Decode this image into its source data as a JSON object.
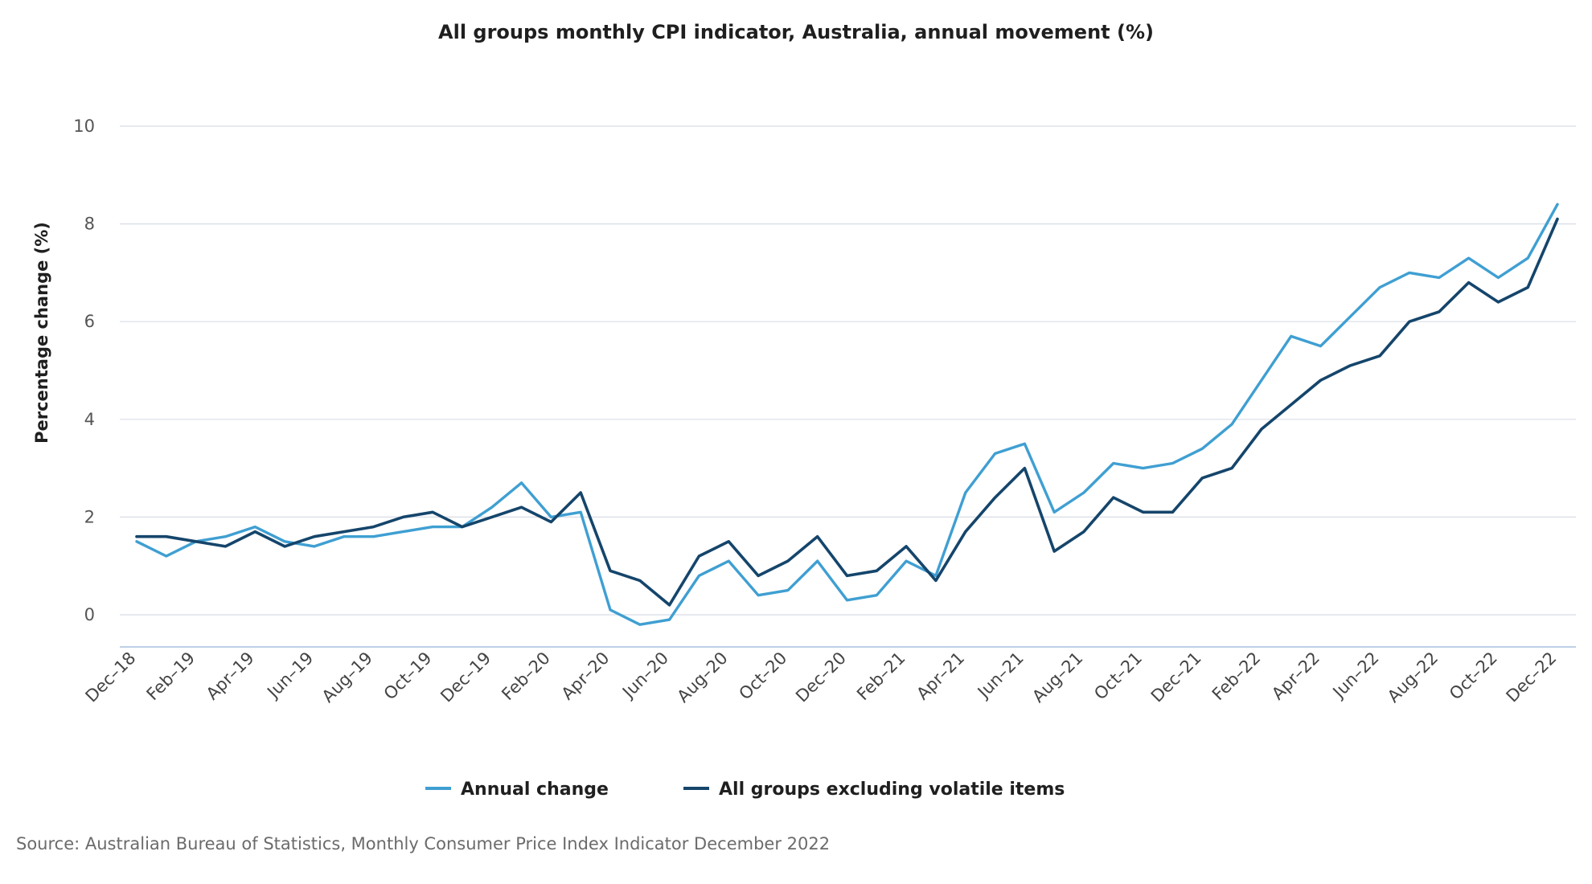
{
  "chart_data": {
    "type": "line",
    "title": "All groups monthly CPI indicator, Australia, annual movement (%)",
    "xlabel": "",
    "ylabel": "Percentage change (%)",
    "ylim": [
      -0.6,
      10
    ],
    "yticks": [
      0,
      2,
      4,
      6,
      8,
      10
    ],
    "grid": true,
    "legend_position": "bottom-center",
    "categories": [
      "Dec-18",
      "Jan-19",
      "Feb-19",
      "Mar-19",
      "Apr-19",
      "May-19",
      "Jun-19",
      "Jul-19",
      "Aug-19",
      "Sep-19",
      "Oct-19",
      "Nov-19",
      "Dec-19",
      "Jan-20",
      "Feb-20",
      "Mar-20",
      "Apr-20",
      "May-20",
      "Jun-20",
      "Jul-20",
      "Aug-20",
      "Sep-20",
      "Oct-20",
      "Nov-20",
      "Dec-20",
      "Jan-21",
      "Feb-21",
      "Mar-21",
      "Apr-21",
      "May-21",
      "Jun-21",
      "Jul-21",
      "Aug-21",
      "Sep-21",
      "Oct-21",
      "Nov-21",
      "Dec-21",
      "Jan-22",
      "Feb-22",
      "Mar-22",
      "Apr-22",
      "May-22",
      "Jun-22",
      "Jul-22",
      "Aug-22",
      "Sep-22",
      "Oct-22",
      "Nov-22",
      "Dec-22"
    ],
    "tick_labels": [
      "Dec–18",
      "Feb–19",
      "Apr–19",
      "Jun–19",
      "Aug–19",
      "Oct–19",
      "Dec–19",
      "Feb–20",
      "Apr–20",
      "Jun–20",
      "Aug–20",
      "Oct–20",
      "Dec–20",
      "Feb–21",
      "Apr–21",
      "Jun–21",
      "Aug–21",
      "Oct–21",
      "Dec–21",
      "Feb–22",
      "Apr–22",
      "Jun–22",
      "Aug–22",
      "Oct–22",
      "Dec–22"
    ],
    "series": [
      {
        "name": "Annual change",
        "color": "#3f9fd2",
        "values": [
          1.5,
          1.2,
          1.5,
          1.6,
          1.8,
          1.5,
          1.4,
          1.6,
          1.6,
          1.7,
          1.8,
          1.8,
          2.2,
          2.7,
          2.0,
          2.1,
          0.1,
          -0.2,
          -0.1,
          0.8,
          1.1,
          0.4,
          0.5,
          1.1,
          0.3,
          0.4,
          1.1,
          0.8,
          2.5,
          3.3,
          3.5,
          2.1,
          2.5,
          3.1,
          3.0,
          3.1,
          3.4,
          3.9,
          4.8,
          5.7,
          5.5,
          6.1,
          6.7,
          7.0,
          6.9,
          7.3,
          6.9,
          7.3,
          8.4
        ]
      },
      {
        "name": "All groups excluding volatile items",
        "color": "#15456b",
        "values": [
          1.6,
          1.6,
          1.5,
          1.4,
          1.7,
          1.4,
          1.6,
          1.7,
          1.8,
          2.0,
          2.1,
          1.8,
          2.0,
          2.2,
          1.9,
          2.5,
          0.9,
          0.7,
          0.2,
          1.2,
          1.5,
          0.8,
          1.1,
          1.6,
          0.8,
          0.9,
          1.4,
          0.7,
          1.7,
          2.4,
          3.0,
          1.3,
          1.7,
          2.4,
          2.1,
          2.1,
          2.8,
          3.0,
          3.8,
          4.3,
          4.8,
          5.1,
          5.3,
          6.0,
          6.2,
          6.8,
          6.4,
          6.7,
          8.1
        ]
      }
    ]
  },
  "source_text": "Source: Australian Bureau of Statistics, Monthly Consumer Price Index Indicator December 2022"
}
